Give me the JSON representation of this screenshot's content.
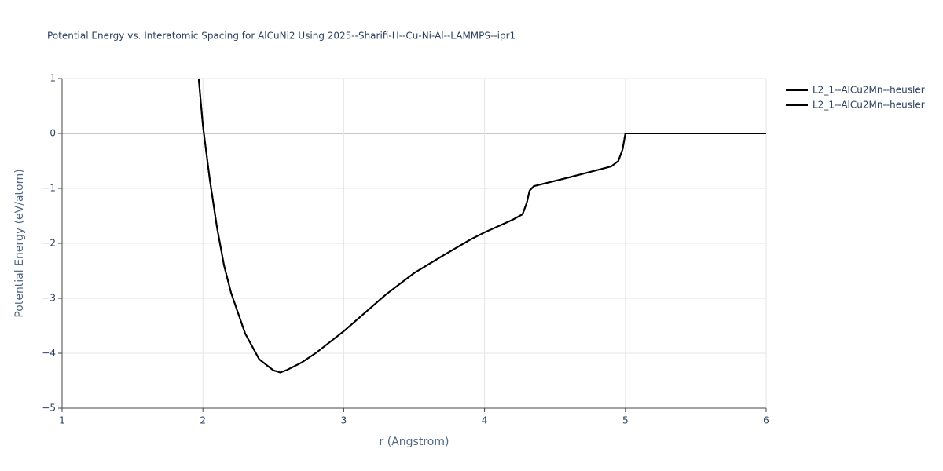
{
  "chart_data": {
    "type": "line",
    "title": "Potential Energy vs. Interatomic Spacing for AlCuNi2 Using 2025--Sharifi-H--Cu-Ni-Al--LAMMPS--ipr1",
    "x_label": "r (Angstrom)",
    "y_label": "Potential Energy (eV/atom)",
    "x": [
      1.97,
      2.0,
      2.05,
      2.1,
      2.15,
      2.2,
      2.3,
      2.4,
      2.5,
      2.55,
      2.6,
      2.7,
      2.8,
      3.0,
      3.3,
      3.5,
      3.7,
      3.9,
      4.0,
      4.2,
      4.27,
      4.3,
      4.32,
      4.35,
      4.6,
      4.9,
      4.95,
      4.98,
      5.0,
      6.0
    ],
    "series": [
      {
        "name": "L2_1--AlCu2Mn--heusler",
        "color": "#000000",
        "values": [
          1,
          0.14,
          -0.86,
          -1.71,
          -2.4,
          -2.9,
          -3.64,
          -4.11,
          -4.31,
          -4.35,
          -4.3,
          -4.17,
          -4.0,
          -3.6,
          -2.93,
          -2.54,
          -2.23,
          -1.93,
          -1.8,
          -1.57,
          -1.47,
          -1.26,
          -1.04,
          -0.96,
          -0.8,
          -0.6,
          -0.5,
          -0.29,
          0,
          0
        ]
      },
      {
        "name": "L2_1--AlCu2Mn--heusler",
        "color": "#000000",
        "values": [
          1,
          0.14,
          -0.86,
          -1.71,
          -2.4,
          -2.9,
          -3.64,
          -4.11,
          -4.31,
          -4.35,
          -4.3,
          -4.17,
          -4.0,
          -3.6,
          -2.93,
          -2.54,
          -2.23,
          -1.93,
          -1.8,
          -1.57,
          -1.47,
          -1.26,
          -1.04,
          -0.96,
          -0.8,
          -0.6,
          -0.5,
          -0.29,
          0,
          0
        ]
      }
    ],
    "xlim": [
      1,
      6
    ],
    "xticks": [
      1,
      2,
      3,
      4,
      5,
      6
    ],
    "ylim": [
      -5,
      1
    ],
    "yticks": [
      {
        "value": -5,
        "label": "−5"
      },
      {
        "value": -4,
        "label": "−4"
      },
      {
        "value": -3,
        "label": "−3"
      },
      {
        "value": -2,
        "label": "−2"
      },
      {
        "value": -1,
        "label": "−1"
      },
      0,
      1
    ],
    "grid": true,
    "legend": "right"
  }
}
